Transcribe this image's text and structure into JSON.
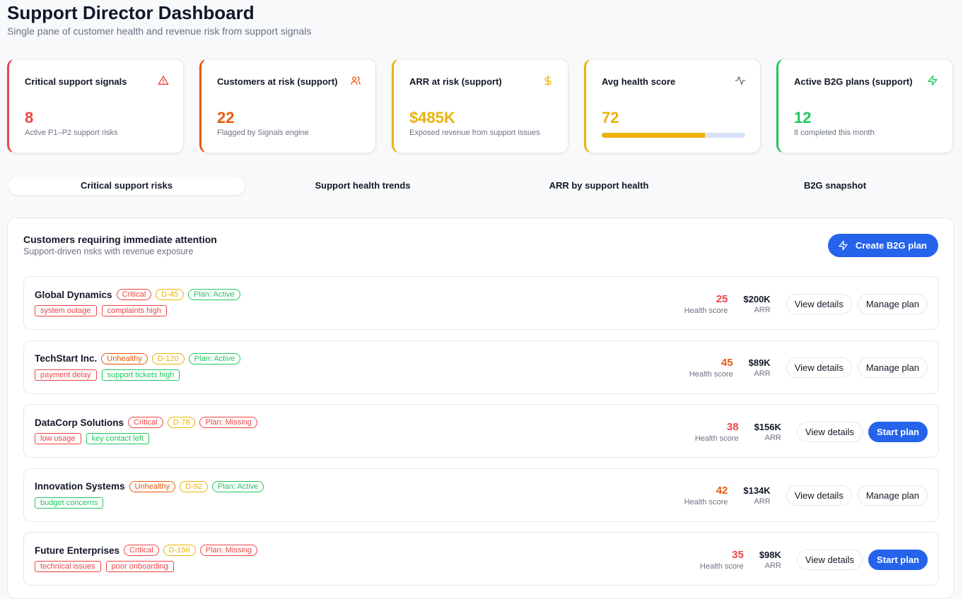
{
  "header": {
    "title": "Support Director Dashboard",
    "subtitle": "Single pane of customer health and revenue risk from support signals"
  },
  "colors": {
    "red": "#ef4444",
    "orange": "#ea580c",
    "yellow": "#eab308",
    "green": "#22c55e",
    "blue": "#2563eb",
    "gray": "#6b7280"
  },
  "kpis": [
    {
      "label": "Critical support signals",
      "value": "8",
      "sub": "Active P1–P2 support risks",
      "icon": "alert-triangle-icon",
      "color": "#ef4444"
    },
    {
      "label": "Customers at risk (support)",
      "value": "22",
      "sub": "Flagged by Signals engine",
      "icon": "users-icon",
      "color": "#ea580c"
    },
    {
      "label": "ARR at risk (support)",
      "value": "$485K",
      "sub": "Exposed revenue from support issues",
      "icon": "dollar-icon",
      "color": "#eab308"
    },
    {
      "label": "Avg health score",
      "value": "72",
      "progress": 72,
      "icon": "activity-icon",
      "color": "#eab308"
    },
    {
      "label": "Active B2G plans (support)",
      "value": "12",
      "sub": "8 completed this month",
      "icon": "zap-icon",
      "color": "#22c55e"
    }
  ],
  "tabs": [
    {
      "label": "Critical support risks",
      "active": true
    },
    {
      "label": "Support health trends"
    },
    {
      "label": "ARR by support health"
    },
    {
      "label": "B2G snapshot"
    }
  ],
  "panel": {
    "title": "Customers requiring immediate attention",
    "subtitle": "Support-driven risks with revenue exposure",
    "create_label": "Create B2G plan",
    "score_label": "Health score",
    "arr_label": "ARR",
    "view_label": "View details"
  },
  "customers": [
    {
      "name": "Global Dynamics",
      "status": "Critical",
      "status_color": "#ef4444",
      "days": "D-45",
      "plan": "Plan: Active",
      "plan_color": "#22c55e",
      "tags": [
        {
          "t": "system outage",
          "c": "#ef4444"
        },
        {
          "t": "complaints high",
          "c": "#ef4444"
        }
      ],
      "score": "25",
      "score_color": "#ef4444",
      "arr": "$200K",
      "action": "Manage plan"
    },
    {
      "name": "TechStart Inc.",
      "status": "Unhealthy",
      "status_color": "#ea580c",
      "days": "D-120",
      "plan": "Plan: Active",
      "plan_color": "#22c55e",
      "tags": [
        {
          "t": "payment delay",
          "c": "#ef4444"
        },
        {
          "t": "support tickets high",
          "c": "#22c55e"
        }
      ],
      "score": "45",
      "score_color": "#ea580c",
      "arr": "$89K",
      "action": "Manage plan"
    },
    {
      "name": "DataCorp Solutions",
      "status": "Critical",
      "status_color": "#ef4444",
      "days": "D-78",
      "plan": "Plan: Missing",
      "plan_color": "#ef4444",
      "tags": [
        {
          "t": "low usage",
          "c": "#ef4444"
        },
        {
          "t": "key contact left",
          "c": "#22c55e"
        }
      ],
      "score": "38",
      "score_color": "#ef4444",
      "arr": "$156K",
      "action": "Start plan"
    },
    {
      "name": "Innovation Systems",
      "status": "Unhealthy",
      "status_color": "#ea580c",
      "days": "D-92",
      "plan": "Plan: Active",
      "plan_color": "#22c55e",
      "tags": [
        {
          "t": "budget concerns",
          "c": "#22c55e"
        }
      ],
      "score": "42",
      "score_color": "#ea580c",
      "arr": "$134K",
      "action": "Manage plan"
    },
    {
      "name": "Future Enterprises",
      "status": "Critical",
      "status_color": "#ef4444",
      "days": "D-156",
      "plan": "Plan: Missing",
      "plan_color": "#ef4444",
      "tags": [
        {
          "t": "technical issues",
          "c": "#ef4444"
        },
        {
          "t": "poor onboarding",
          "c": "#ef4444"
        }
      ],
      "score": "35",
      "score_color": "#ef4444",
      "arr": "$98K",
      "action": "Start plan"
    }
  ]
}
